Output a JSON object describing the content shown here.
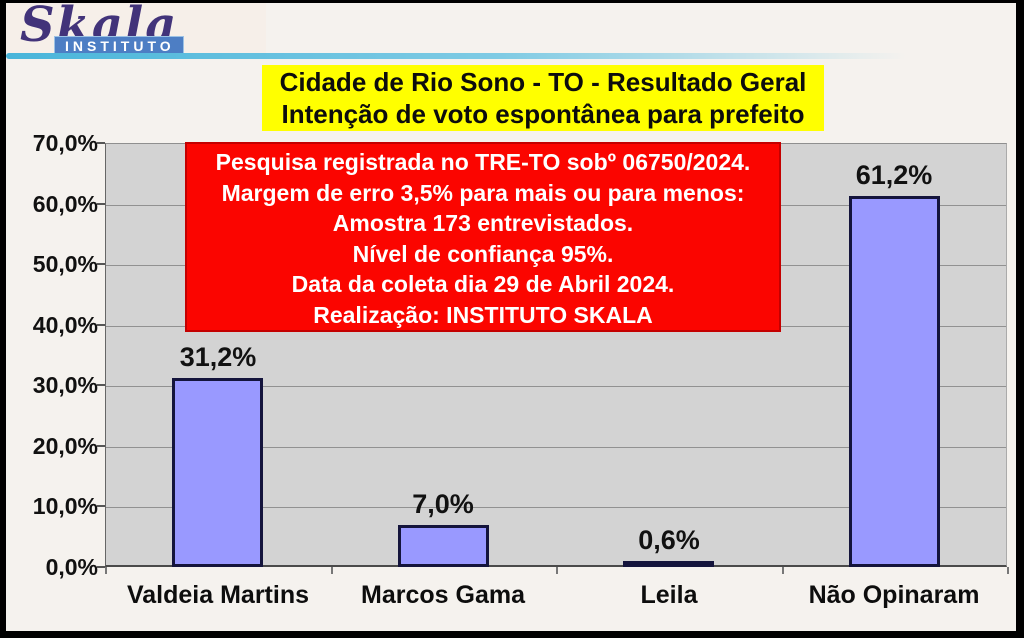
{
  "logo": {
    "brand": "Skala",
    "sub": "INSTITUTO"
  },
  "title": {
    "line1": "Cidade de Rio Sono - TO - Resultado Geral",
    "line2": "Intenção de voto espontânea para prefeito"
  },
  "info_box": {
    "lines": [
      "Pesquisa registrada no TRE-TO sobº 06750/2024.",
      "Margem de erro 3,5% para mais ou para menos:",
      "Amostra 173 entrevistados.",
      "Nível de confiança 95%.",
      "Data da coleta dia 29 de Abril 2024.",
      "Realização: INSTITUTO SKALA"
    ]
  },
  "chart_data": {
    "type": "bar",
    "title": "Cidade de Rio Sono - TO - Resultado Geral / Intenção de voto espontânea para prefeito",
    "categories": [
      "Valdeia Martins",
      "Marcos Gama",
      "Leila",
      "Não Opinaram"
    ],
    "values": [
      31.2,
      7.0,
      0.6,
      61.2
    ],
    "value_labels": [
      "31,2%",
      "7,0%",
      "0,6%",
      "61,2%"
    ],
    "y_tick_labels": [
      "70,0%",
      "60,0%",
      "50,0%",
      "40,0%",
      "30,0%",
      "20,0%",
      "10,0%",
      "0,0%"
    ],
    "y_tick_values": [
      70,
      60,
      50,
      40,
      30,
      20,
      10,
      0
    ],
    "ylim": [
      0,
      70
    ],
    "grid": true,
    "legend": "none",
    "bar_fill_color": "#9999FF",
    "bar_border_color": "#14143C",
    "plot_background": "#D3D3D3"
  },
  "colors": {
    "title_highlight": "#FFFF00",
    "info_background": "#FB0500",
    "accent_line": "#49B5DA",
    "logo_purple": "#42337A",
    "logo_blue": "#4D7EC4"
  }
}
